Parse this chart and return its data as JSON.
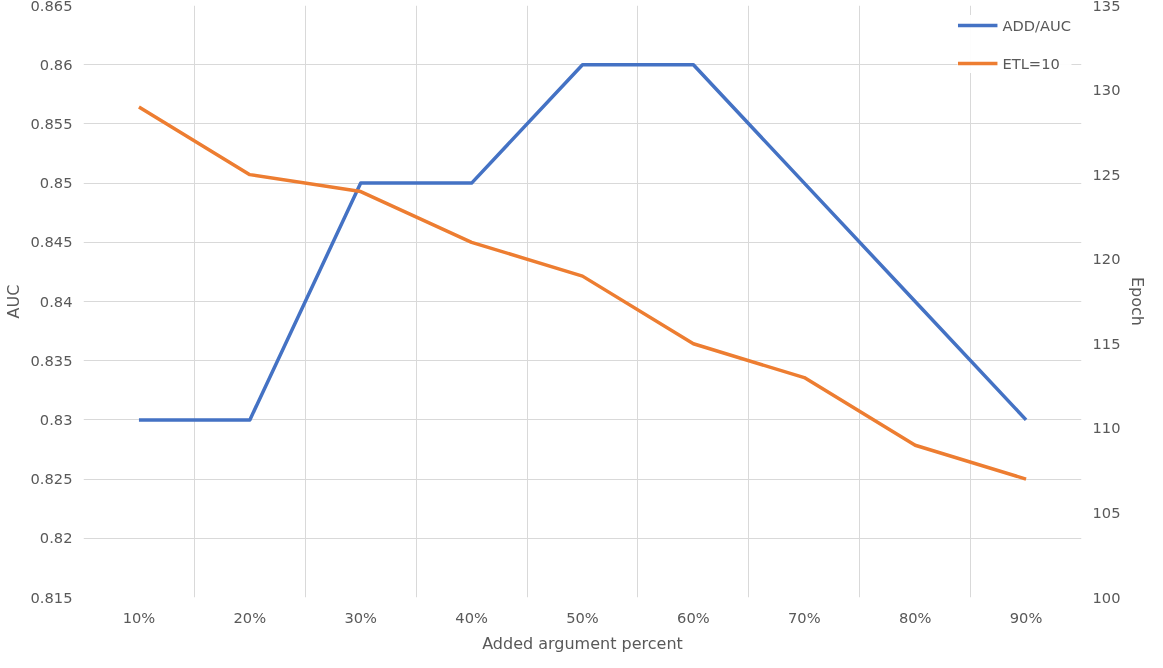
{
  "chart_data": {
    "type": "line",
    "xlabel": "Added argument percent",
    "ylabel": "AUC",
    "y2label": "Epoch",
    "categories": [
      "10%",
      "20%",
      "30%",
      "40%",
      "50%",
      "60%",
      "70%",
      "80%",
      "90%"
    ],
    "series": [
      {
        "name": "ADD/AUC",
        "color": "#4472c4",
        "values": [
          0.83,
          0.83,
          0.85,
          0.85,
          0.86,
          0.86,
          0.85,
          0.84,
          0.83
        ]
      },
      {
        "name": "ETL=10",
        "color": "#ed7d31",
        "axis": "y2",
        "values": [
          129,
          125,
          124,
          121,
          119,
          115,
          113,
          109,
          107
        ]
      }
    ],
    "ylim": [
      0.815,
      0.865
    ],
    "yticks": [
      0.815,
      0.82,
      0.825,
      0.83,
      0.835,
      0.84,
      0.845,
      0.85,
      0.855,
      0.86,
      0.865
    ],
    "y2lim": [
      100,
      135
    ],
    "y2ticks": [
      100,
      105,
      110,
      115,
      120,
      125,
      130,
      135
    ],
    "grid": true,
    "legend": "top right",
    "marker": "none",
    "line_style": "solid"
  }
}
